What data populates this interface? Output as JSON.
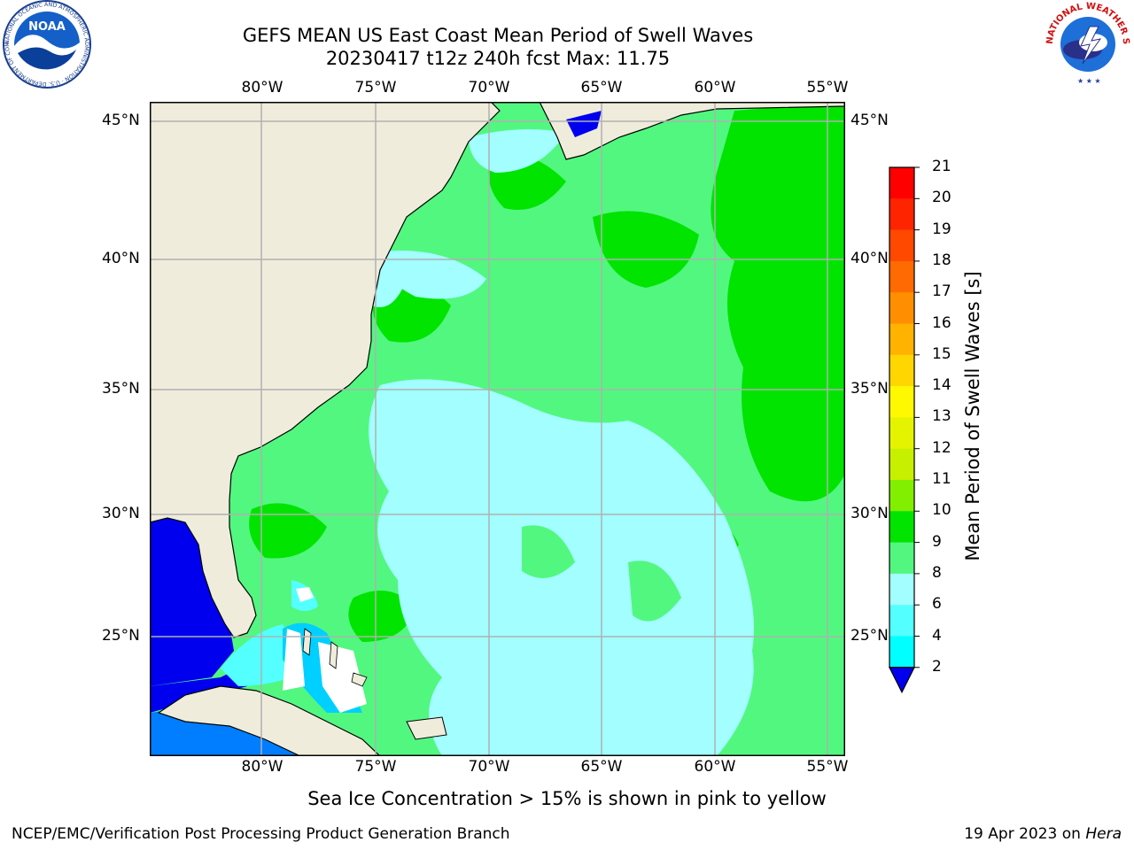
{
  "title": {
    "line1": "GEFS MEAN US East Coast Mean Period of Swell Waves",
    "line2": "20230417 t12z 240h fcst   Max: 11.75"
  },
  "map": {
    "lon_labels": [
      "80°W",
      "75°W",
      "70°W",
      "65°W",
      "60°W",
      "55°W"
    ],
    "lat_labels": [
      "45°N",
      "40°N",
      "35°N",
      "30°N",
      "25°N"
    ],
    "colors": {
      "land": "#efecdc",
      "ocean_9_10": "#52f780",
      "ocean_8_9": "#a3ffff",
      "ocean_10_11": "#00e400",
      "gulf": "#0000ee",
      "caribbean": "#007eff",
      "grid": "#b0b0b0"
    }
  },
  "colorbar": {
    "title": "Mean Period of Swell Waves [s]",
    "ticks": [
      "21",
      "20",
      "19",
      "18",
      "17",
      "16",
      "15",
      "14",
      "13",
      "12",
      "11",
      "10",
      "9",
      "8",
      "6",
      "4",
      "2"
    ],
    "colors": [
      "#ff0000",
      "#ff2400",
      "#ff4800",
      "#ff6b00",
      "#ff8f00",
      "#ffb200",
      "#ffd600",
      "#fff900",
      "#e4f400",
      "#c6f000",
      "#82ee00",
      "#00e400",
      "#52f780",
      "#a3ffff",
      "#54ffff",
      "#00ffff",
      "#00d0ff",
      "#007eff",
      "#0000ee"
    ]
  },
  "note": "Sea Ice Concentration > 15% is shown in pink to yellow",
  "footer": {
    "left": "NCEP/EMC/Verification Post Processing Product Generation Branch",
    "right_date": "19 Apr 2023 on ",
    "right_machine": "Hera"
  },
  "logos": {
    "noaa_text": "NOAA",
    "noaa_ring": "NATIONAL OCEANIC AND ATMOSPHERIC ADMINISTRATION · U.S. DEPARTMENT OF COMMERCE ·",
    "nws_ring": "NATIONAL WEATHER SERVICE"
  }
}
